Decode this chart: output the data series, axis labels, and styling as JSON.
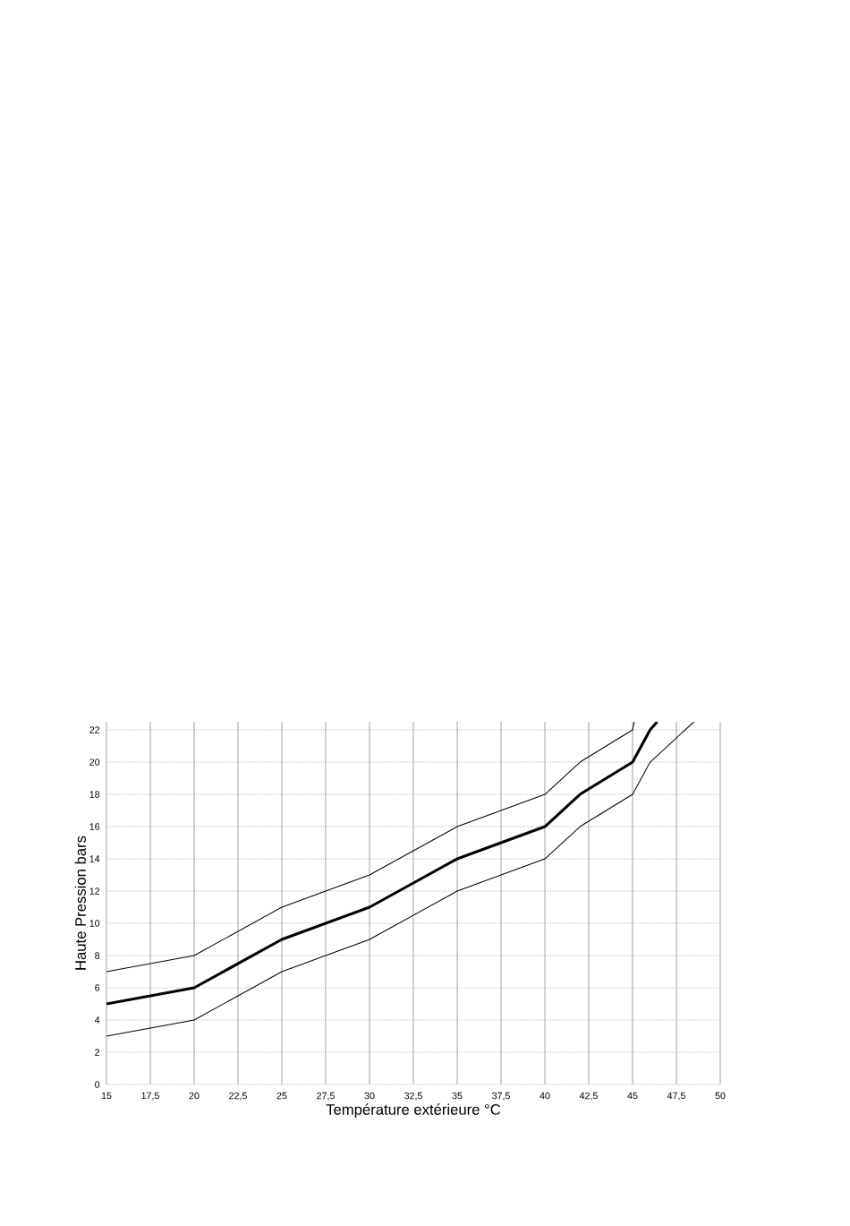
{
  "chart_data": {
    "type": "line",
    "xlabel": "Température extérieure °C",
    "ylabel": "Haute Pression bars",
    "xlim": [
      15,
      50
    ],
    "ylim": [
      0,
      22.5
    ],
    "xticks": [
      15,
      {
        "value": 17.5,
        "label": "17,5"
      },
      20,
      {
        "value": 22.5,
        "label": "22,5"
      },
      25,
      {
        "value": 27.5,
        "label": "27,5"
      },
      30,
      {
        "value": 32.5,
        "label": "32,5"
      },
      35,
      {
        "value": 37.5,
        "label": "37,5"
      },
      40,
      {
        "value": 42.5,
        "label": "42,5"
      },
      45,
      {
        "value": 47.5,
        "label": "47,5"
      },
      50
    ],
    "yticks": [
      0,
      2,
      4,
      6,
      8,
      10,
      12,
      14,
      16,
      18,
      20,
      22
    ],
    "grid": true,
    "marker": "none",
    "line_style": "solid",
    "series": [
      {
        "color": "#000000",
        "x": [
          15,
          20,
          25,
          30,
          35,
          40,
          42,
          45,
          45.1
        ],
        "values": [
          7,
          8,
          11,
          13,
          16,
          18,
          20,
          22,
          22.5
        ]
      },
      {
        "color": "#000000",
        "x": [
          15,
          20,
          25,
          30,
          32.5,
          35,
          40,
          42,
          45,
          46,
          46.4
        ],
        "values": [
          5,
          6,
          9,
          11,
          12.5,
          14,
          16,
          18,
          20,
          22,
          22.5
        ]
      },
      {
        "color": "#000000",
        "x": [
          15,
          20,
          25,
          30,
          35,
          40,
          42,
          45,
          46,
          48.5
        ],
        "values": [
          3,
          4,
          7,
          9,
          12,
          14,
          16,
          18,
          20,
          22.5
        ]
      }
    ]
  }
}
